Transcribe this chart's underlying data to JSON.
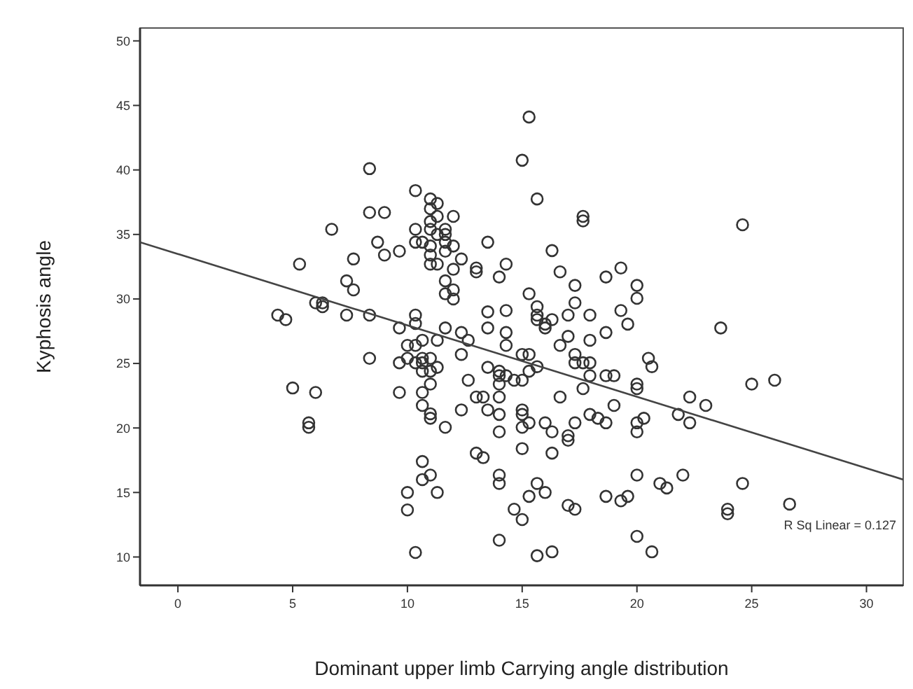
{
  "chart_data": {
    "type": "scatter",
    "xlabel": "Dominant upper limb Carrying angle distribution",
    "ylabel": "Kyphosis angle",
    "xlim": [
      -1.65,
      31.6
    ],
    "xticks": [
      0,
      5,
      10,
      15,
      20,
      25,
      30
    ],
    "ylim": [
      7.8,
      51
    ],
    "yticks": [
      10,
      15,
      20,
      25,
      30,
      35,
      40,
      45,
      50
    ],
    "grid": false,
    "annotations": [
      "R Sq Linear = 0.127"
    ],
    "series": [
      {
        "marker": "circle",
        "color": "#333333",
        "x": [
          8.35,
          10.35,
          8.35,
          9.0,
          6.7,
          11.0,
          11.3,
          11.0,
          11.3,
          12.0,
          11.0,
          10.35,
          10.35,
          11.0,
          11.65,
          11.3,
          11.65,
          8.7,
          10.65,
          11.0,
          11.65,
          12.0,
          13.5,
          9.65,
          9.0,
          11.0,
          11.65,
          7.65,
          12.35,
          11.0,
          11.3,
          5.3,
          12.0,
          13.0,
          13.0,
          7.35,
          7.65,
          11.65,
          11.65,
          12.0,
          12.0,
          13.5,
          6.0,
          6.3,
          6.3,
          4.35,
          4.7,
          7.35,
          8.35,
          10.35,
          10.35,
          9.65,
          11.65,
          12.35,
          13.5,
          12.65,
          10.0,
          10.35,
          10.65,
          11.3,
          8.35,
          9.65,
          10.0,
          10.35,
          10.65,
          10.65,
          11.0,
          10.65,
          11.0,
          11.3,
          12.35,
          13.5,
          5.0,
          6.0,
          9.65,
          10.65,
          11.0,
          12.65,
          13.0,
          13.3,
          10.65,
          11.0,
          11.0,
          12.35,
          13.5,
          5.7,
          5.7,
          11.65,
          13.0,
          13.3,
          10.65,
          10.65,
          11.0,
          10.0,
          11.3,
          10.0,
          10.35,
          15.3,
          15.0,
          15.65,
          17.65,
          17.65,
          24.6,
          16.3,
          14.3,
          14.0,
          16.65,
          19.3,
          18.65,
          17.3,
          20.0,
          15.3,
          17.3,
          20.0,
          15.65,
          15.65,
          15.65,
          14.3,
          19.3,
          17.0,
          17.95,
          16.3,
          16.0,
          16.0,
          19.6,
          14.3,
          18.65,
          23.65,
          17.0,
          14.3,
          16.65,
          17.95,
          15.0,
          15.3,
          17.3,
          20.5,
          17.3,
          17.65,
          17.95,
          17.95,
          20.65,
          14.0,
          14.3,
          14.0,
          14.0,
          15.65,
          15.3,
          14.65,
          15.0,
          14.0,
          14.0,
          15.0,
          15.0,
          16.65,
          17.65,
          18.65,
          19.0,
          20.0,
          20.0,
          22.3,
          23.0,
          21.8,
          22.3,
          25.0,
          26.0,
          19.0,
          17.95,
          18.3,
          17.3,
          16.0,
          15.0,
          15.3,
          16.3,
          17.0,
          17.0,
          18.65,
          20.0,
          20.0,
          20.3,
          14.0,
          15.0,
          16.3,
          14.0,
          14.0,
          15.65,
          15.3,
          16.0,
          20.0,
          22.0,
          21.0,
          21.3,
          24.6,
          18.65,
          19.3,
          19.6,
          17.0,
          17.3,
          14.65,
          15.0,
          14.0,
          20.0,
          15.65,
          16.3,
          20.65,
          23.95,
          23.95,
          26.65
        ],
        "values": [
          40.1,
          38.4,
          36.7,
          36.7,
          35.4,
          37.75,
          37.4,
          37.0,
          36.4,
          36.4,
          36.0,
          35.4,
          34.4,
          35.4,
          35.4,
          35.0,
          35.0,
          34.4,
          34.4,
          34.1,
          34.4,
          34.1,
          34.4,
          33.7,
          33.4,
          33.4,
          33.7,
          33.1,
          33.1,
          32.7,
          32.7,
          32.7,
          32.3,
          32.4,
          32.1,
          31.4,
          30.7,
          31.4,
          30.4,
          30.7,
          30.0,
          29.0,
          29.7,
          29.7,
          29.4,
          28.75,
          28.4,
          28.75,
          28.75,
          28.75,
          28.1,
          27.75,
          27.75,
          27.4,
          27.75,
          26.8,
          26.4,
          26.4,
          26.8,
          26.8,
          25.4,
          25.05,
          25.4,
          25.05,
          25.4,
          25.05,
          25.4,
          24.4,
          24.4,
          24.7,
          25.7,
          24.7,
          23.1,
          22.75,
          22.75,
          22.75,
          23.4,
          23.7,
          22.4,
          22.4,
          21.75,
          21.1,
          20.75,
          21.4,
          21.4,
          20.4,
          20.05,
          20.05,
          18.05,
          17.7,
          17.4,
          16.0,
          16.35,
          15.0,
          15.0,
          13.65,
          10.35,
          44.1,
          40.75,
          37.75,
          36.4,
          36.05,
          35.75,
          33.75,
          32.7,
          31.7,
          32.1,
          32.4,
          31.7,
          31.05,
          31.05,
          30.4,
          29.7,
          30.05,
          29.4,
          28.75,
          28.4,
          29.1,
          29.1,
          28.75,
          28.75,
          28.4,
          28.05,
          27.75,
          28.05,
          27.4,
          27.4,
          27.75,
          27.1,
          26.4,
          26.4,
          26.8,
          25.7,
          25.7,
          25.7,
          25.4,
          25.05,
          25.05,
          25.05,
          24.05,
          24.75,
          24.4,
          24.05,
          23.4,
          24.05,
          24.75,
          24.4,
          23.7,
          23.7,
          22.4,
          21.05,
          21.4,
          21.05,
          22.4,
          23.05,
          24.05,
          24.05,
          23.4,
          23.05,
          22.4,
          21.75,
          21.05,
          20.4,
          23.4,
          23.7,
          21.75,
          21.05,
          20.75,
          20.4,
          20.4,
          20.05,
          20.4,
          19.7,
          19.4,
          19.05,
          20.4,
          20.4,
          19.7,
          20.75,
          19.7,
          18.4,
          18.05,
          16.35,
          15.7,
          15.7,
          14.7,
          15.0,
          16.35,
          16.35,
          15.7,
          15.35,
          15.7,
          14.7,
          14.35,
          14.7,
          14.0,
          13.7,
          13.7,
          12.9,
          11.3,
          11.6,
          10.1,
          10.4,
          10.4,
          13.7,
          13.35,
          14.1
        ]
      },
      {
        "type": "line",
        "marker": "none",
        "color": "#444444",
        "x": [
          -1.65,
          31.6
        ],
        "values": [
          34.4,
          16.0
        ]
      }
    ]
  }
}
